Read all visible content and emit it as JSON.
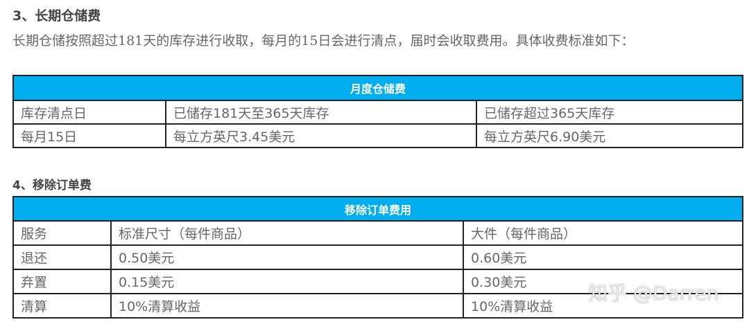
{
  "section3": {
    "heading": "3、长期仓储费",
    "paragraph": "长期仓储按照超过181天的库存进行收取，每月的15日会进行清点，届时会收取费用。具体收费标准如下：",
    "table": {
      "title": "月度仓储费",
      "rows": [
        [
          "库存清点日",
          "已储存181天至365天库存",
          "已储存超过365天库存"
        ],
        [
          "每月15日",
          "每立方英尺3.45美元",
          "每立方英尺6.90美元"
        ]
      ]
    }
  },
  "section4": {
    "heading": "4、移除订单费",
    "table": {
      "title": "移除订单费用",
      "rows": [
        [
          "服务",
          "标准尺寸（每件商品）",
          "大件（每件商品）"
        ],
        [
          "退还",
          "0.50美元",
          "0.60美元"
        ],
        [
          "弃置",
          "0.15美元",
          "0.30美元"
        ],
        [
          "清算",
          "10%清算收益",
          "10%清算收益"
        ]
      ]
    }
  },
  "watermark": "知乎 @Darren",
  "colors": {
    "header": "#00aeef"
  }
}
